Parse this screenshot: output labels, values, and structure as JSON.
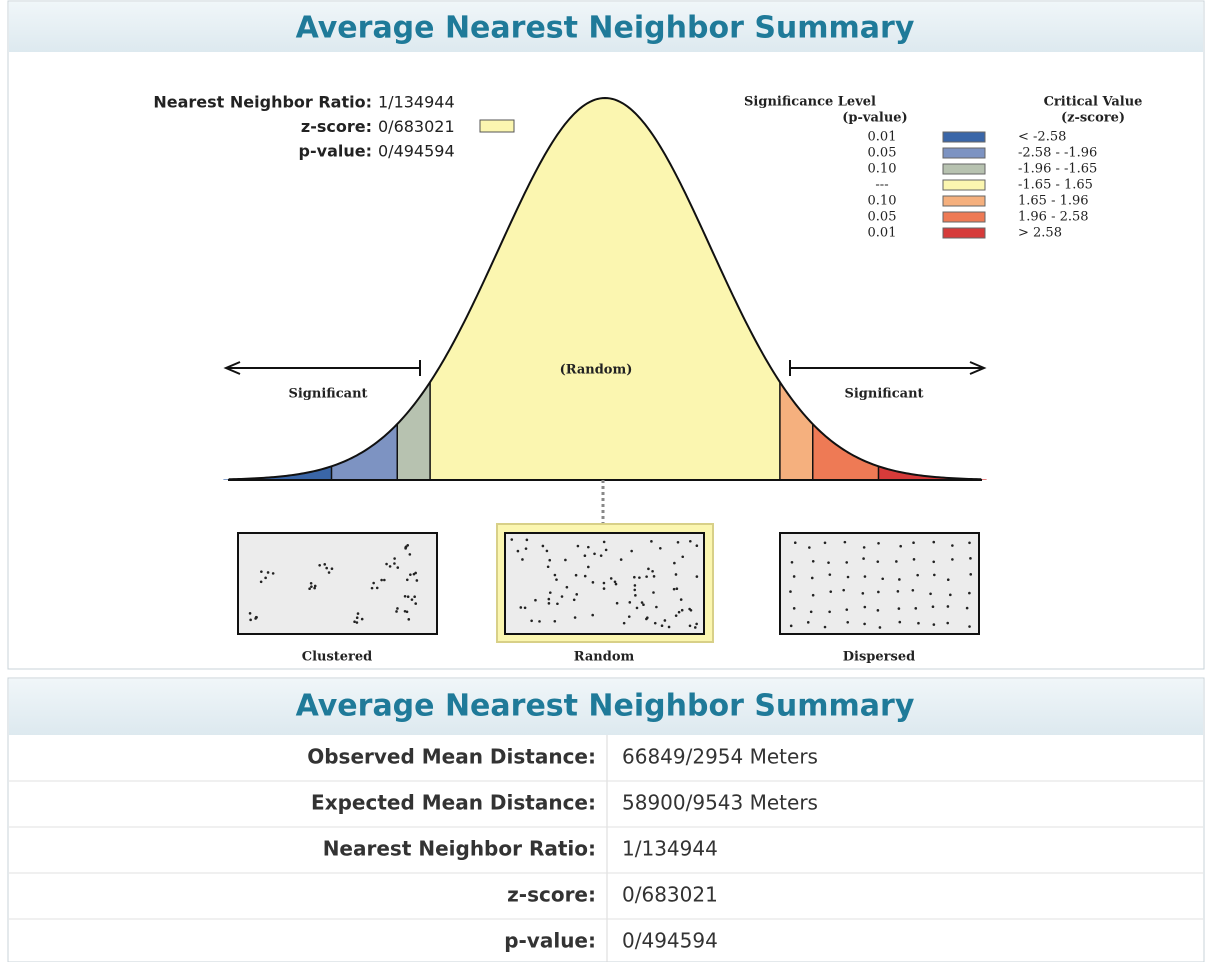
{
  "top_panel": {
    "title": "Average Nearest Neighbor Summary",
    "stats": [
      {
        "label": "Nearest Neighbor Ratio:",
        "value": "1/134944"
      },
      {
        "label": "z-score:",
        "value": "0/683021"
      },
      {
        "label": "p-value:",
        "value": "0/494594"
      }
    ],
    "legend": {
      "p_header": [
        "Significance Level",
        "(p-value)"
      ],
      "z_header": [
        "Critical Value",
        "(z-score)"
      ],
      "rows": [
        {
          "p": "0.01",
          "color": "#3a66a8",
          "z": "< -2.58"
        },
        {
          "p": "0.05",
          "color": "#7d93c2",
          "z": "-2.58 - -1.96"
        },
        {
          "p": "0.10",
          "color": "#b7c2b0",
          "z": "-1.96 - -1.65"
        },
        {
          "p": "---",
          "color": "#fbf6b0",
          "z": "-1.65 - 1.65"
        },
        {
          "p": "0.10",
          "color": "#f5b07e",
          "z": "1.65 - 1.96"
        },
        {
          "p": "0.05",
          "color": "#ee7a55",
          "z": "1.96 - 2.58"
        },
        {
          "p": "0.01",
          "color": "#d63b3a",
          "z": "> 2.58"
        }
      ]
    },
    "chart": {
      "left_label": "Significant",
      "center_label": "(Random)",
      "right_label": "Significant"
    },
    "patterns": [
      "Clustered",
      "Random",
      "Dispersed"
    ]
  },
  "table": {
    "title": "Average Nearest Neighbor Summary",
    "rows": [
      [
        "Observed Mean Distance:",
        "66849/2954 Meters"
      ],
      [
        "Expected Mean Distance:",
        "58900/9543 Meters"
      ],
      [
        "Nearest Neighbor Ratio:",
        "1/134944"
      ],
      [
        "z-score:",
        "0/683021"
      ],
      [
        "p-value:",
        "0/494594"
      ]
    ]
  }
}
